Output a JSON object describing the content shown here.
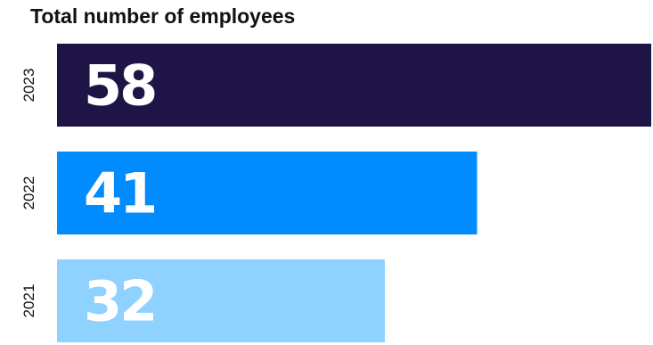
{
  "chart_data": {
    "type": "bar",
    "orientation": "horizontal",
    "title": "Total number of employees",
    "categories": [
      "2023",
      "2022",
      "2021"
    ],
    "values": [
      58,
      41,
      32
    ],
    "colors": [
      "#1f1446",
      "#008cff",
      "#8fd1ff"
    ],
    "value_label_color": "#ffffff",
    "xlim": [
      0,
      58
    ],
    "grid": false,
    "legend": "none"
  }
}
